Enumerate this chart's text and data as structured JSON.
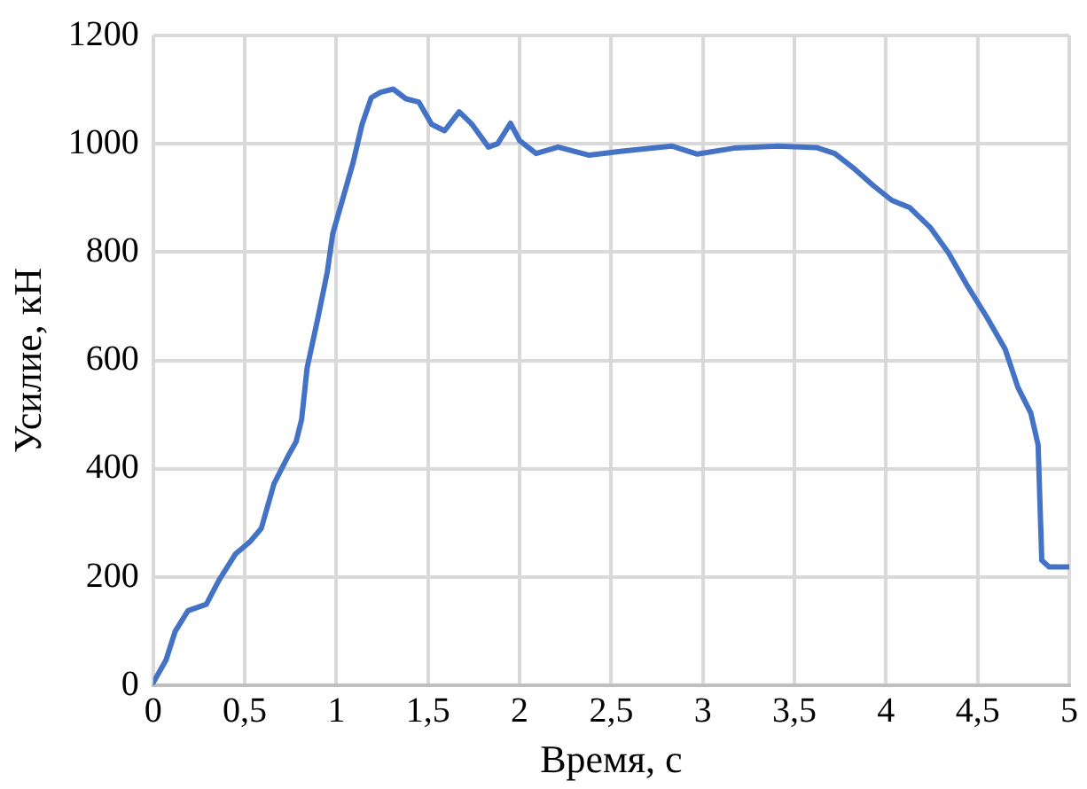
{
  "chart_data": {
    "type": "line",
    "xlabel": "Время, с",
    "ylabel": "Усилие, кН",
    "grid": true,
    "legend": false,
    "marker": "none",
    "line_style": "solid",
    "xlim": [
      0,
      5
    ],
    "xticks": [
      0,
      {
        "value": 0.5,
        "label": "0,5"
      },
      1,
      {
        "value": 1.5,
        "label": "1,5"
      },
      2,
      {
        "value": 2.5,
        "label": "2,5"
      },
      3,
      {
        "value": 3.5,
        "label": "3,5"
      },
      4,
      {
        "value": 4.5,
        "label": "4,5"
      },
      5
    ],
    "ylim": [
      0,
      1200
    ],
    "yticks": [
      0,
      200,
      400,
      600,
      800,
      1000,
      1200
    ],
    "x": [
      0,
      0.07,
      0.12,
      0.19,
      0.29,
      0.36,
      0.45,
      0.53,
      0.59,
      0.66,
      0.74,
      0.78,
      0.81,
      0.84,
      0.9,
      0.95,
      0.98,
      1.03,
      1.09,
      1.14,
      1.19,
      1.24,
      1.31,
      1.38,
      1.45,
      1.52,
      1.59,
      1.67,
      1.74,
      1.83,
      1.88,
      1.95,
      2.0,
      2.09,
      2.21,
      2.38,
      2.55,
      2.83,
      2.97,
      3.17,
      3.41,
      3.62,
      3.72,
      3.83,
      3.93,
      4.03,
      4.13,
      4.24,
      4.34,
      4.44,
      4.55,
      4.65,
      4.72,
      4.79,
      4.83,
      4.85,
      4.89,
      5.0
    ],
    "series": [
      {
        "color": "#4472c4",
        "values": [
          5,
          47,
          100,
          138,
          150,
          195,
          243,
          266,
          290,
          373,
          426,
          450,
          491,
          586,
          680,
          763,
          834,
          893,
          964,
          1036,
          1085,
          1095,
          1101,
          1083,
          1077,
          1036,
          1024,
          1059,
          1036,
          994,
          1000,
          1038,
          1006,
          982,
          994,
          979,
          986,
          996,
          981,
          992,
          996,
          993,
          982,
          953,
          923,
          896,
          882,
          846,
          799,
          740,
          680,
          621,
          550,
          503,
          444,
          231,
          219,
          219
        ]
      }
    ]
  }
}
